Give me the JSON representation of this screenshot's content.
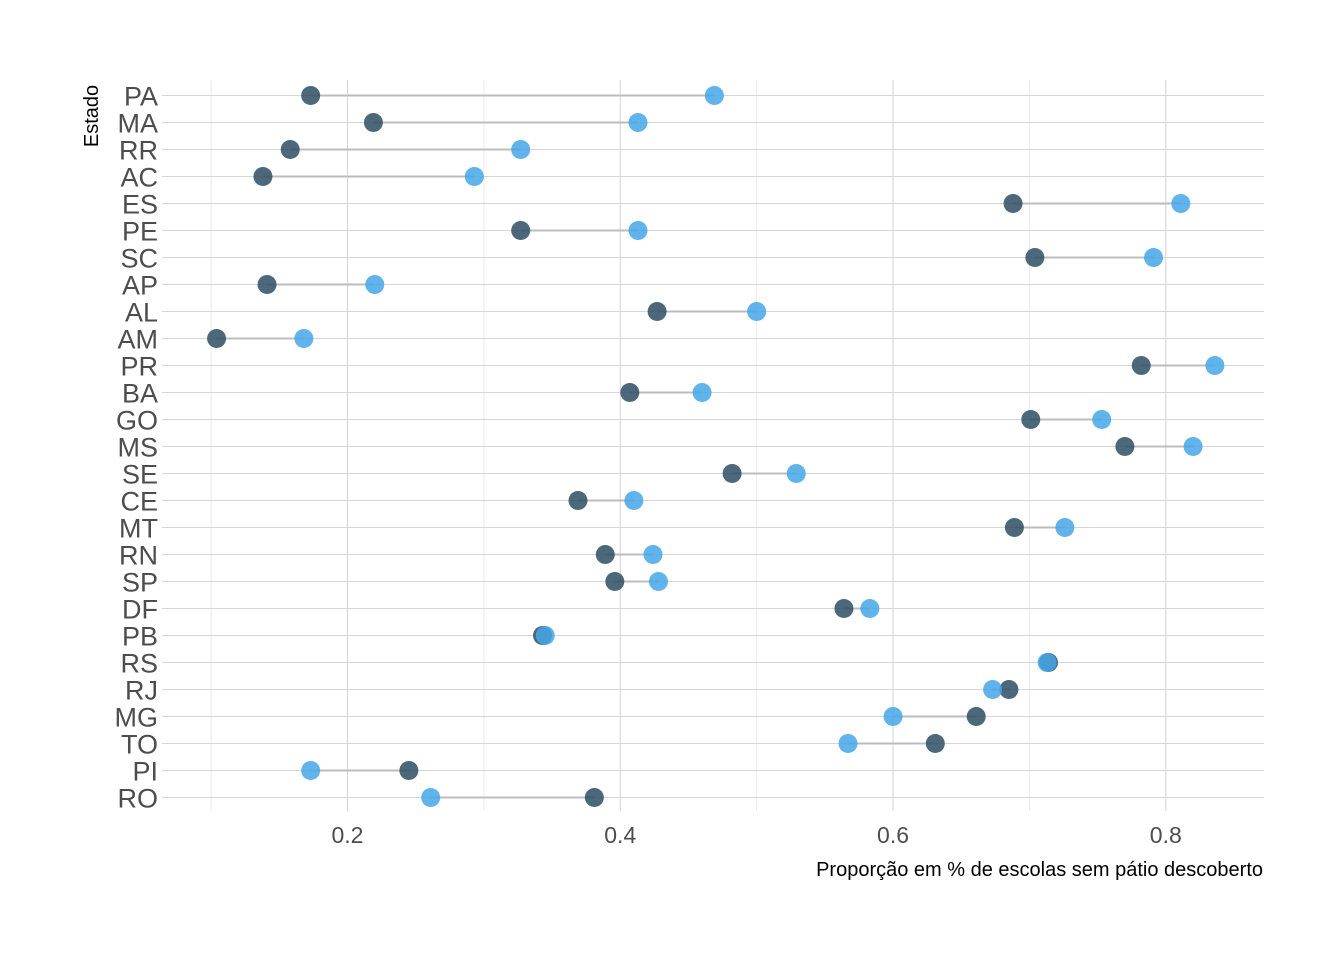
{
  "chart_data": {
    "type": "scatter",
    "subtype": "dumbbell",
    "title": "",
    "xlabel": "Proporção em % de escolas sem pátio descoberto",
    "ylabel": "Estado",
    "xlim": [
      0.065,
      0.87
    ],
    "x_ticks": [
      "0.2",
      "0.4",
      "0.6",
      "0.8"
    ],
    "grid": true,
    "legend": "none",
    "colors": {
      "series_dark": "#2e4d63",
      "series_light": "#44a6e8",
      "segment": "#bdbdbd",
      "grid": "#d6d6d6"
    },
    "categories": [
      "PA",
      "MA",
      "RR",
      "AC",
      "ES",
      "PE",
      "SC",
      "AP",
      "AL",
      "AM",
      "PR",
      "BA",
      "GO",
      "MS",
      "SE",
      "CE",
      "MT",
      "RN",
      "SP",
      "DF",
      "PB",
      "RS",
      "RJ",
      "MG",
      "TO",
      "PI",
      "RO"
    ],
    "series": [
      {
        "values": [
          0.173,
          0.219,
          0.158,
          0.138,
          0.688,
          0.327,
          0.704,
          0.141,
          0.427,
          0.104,
          0.782,
          0.407,
          0.701,
          0.77,
          0.482,
          0.369,
          0.689,
          0.389,
          0.396,
          0.564,
          0.343,
          0.714,
          0.685,
          0.661,
          0.631,
          0.245,
          0.381
        ]
      },
      {
        "values": [
          0.469,
          0.413,
          0.327,
          0.293,
          0.811,
          0.413,
          0.791,
          0.22,
          0.5,
          0.168,
          0.836,
          0.46,
          0.753,
          0.82,
          0.529,
          0.41,
          0.726,
          0.424,
          0.428,
          0.583,
          0.345,
          0.713,
          0.673,
          0.6,
          0.567,
          0.173,
          0.261
        ]
      }
    ]
  }
}
